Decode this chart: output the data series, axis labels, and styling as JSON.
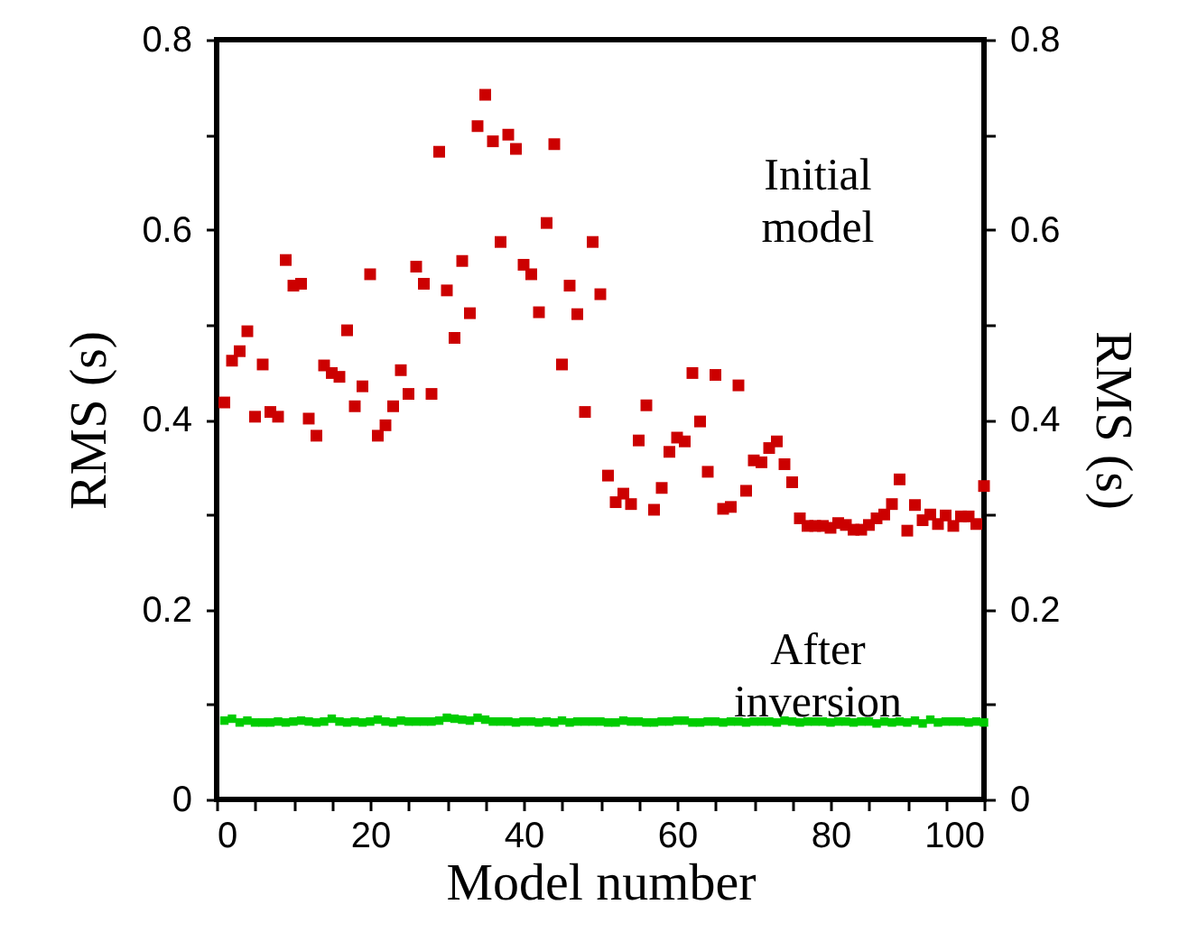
{
  "chart_data": {
    "type": "scatter",
    "xlabel": "Model number",
    "ylabel": "RMS (s)",
    "y2label": "RMS (s)",
    "marker": "square",
    "grid": false,
    "xlim": [
      0,
      100
    ],
    "ylim": [
      0,
      0.8
    ],
    "y2lim": [
      0,
      0.8
    ],
    "xticks": [
      0,
      {
        "value": 5,
        "label": null
      },
      {
        "value": 10,
        "label": null
      },
      {
        "value": 15,
        "label": null
      },
      20,
      {
        "value": 25,
        "label": null
      },
      {
        "value": 30,
        "label": null
      },
      {
        "value": 35,
        "label": null
      },
      40,
      {
        "value": 45,
        "label": null
      },
      {
        "value": 50,
        "label": null
      },
      {
        "value": 55,
        "label": null
      },
      60,
      {
        "value": 65,
        "label": null
      },
      {
        "value": 70,
        "label": null
      },
      {
        "value": 75,
        "label": null
      },
      80,
      {
        "value": 85,
        "label": null
      },
      {
        "value": 90,
        "label": null
      },
      {
        "value": 95,
        "label": null
      },
      100
    ],
    "yticks": [
      0,
      {
        "value": 0.1,
        "label": null
      },
      0.2,
      {
        "value": 0.3,
        "label": null
      },
      0.4,
      {
        "value": 0.5,
        "label": null
      },
      0.6,
      {
        "value": 0.7,
        "label": null
      },
      0.8
    ],
    "y2ticks": [
      0,
      {
        "value": 0.1,
        "label": null
      },
      0.2,
      {
        "value": 0.3,
        "label": null
      },
      0.4,
      {
        "value": 0.5,
        "label": null
      },
      0.6,
      {
        "value": 0.7,
        "label": null
      },
      0.8
    ],
    "x": [
      1,
      2,
      3,
      4,
      5,
      6,
      7,
      8,
      9,
      10,
      11,
      12,
      13,
      14,
      15,
      16,
      17,
      18,
      19,
      20,
      21,
      22,
      23,
      24,
      25,
      26,
      27,
      28,
      29,
      30,
      31,
      32,
      33,
      34,
      35,
      36,
      37,
      38,
      39,
      40,
      41,
      42,
      43,
      44,
      45,
      46,
      47,
      48,
      49,
      50,
      51,
      52,
      53,
      54,
      55,
      56,
      57,
      58,
      59,
      60,
      61,
      62,
      63,
      64,
      65,
      66,
      67,
      68,
      69,
      70,
      71,
      72,
      73,
      74,
      75,
      76,
      77,
      78,
      79,
      80,
      81,
      82,
      83,
      84,
      85,
      86,
      87,
      88,
      89,
      90,
      91,
      92,
      93,
      94,
      95,
      96,
      97,
      98,
      99,
      100
    ],
    "series": [
      {
        "name": "Initial model",
        "color": "#cc0000",
        "values": [
          0.418,
          0.462,
          0.472,
          0.493,
          0.403,
          0.458,
          0.408,
          0.403,
          0.568,
          0.541,
          0.543,
          0.401,
          0.383,
          0.457,
          0.449,
          0.445,
          0.494,
          0.414,
          0.435,
          0.553,
          0.383,
          0.394,
          0.414,
          0.452,
          0.427,
          0.561,
          0.543,
          0.427,
          0.682,
          0.536,
          0.486,
          0.567,
          0.512,
          0.709,
          0.742,
          0.693,
          0.587,
          0.7,
          0.685,
          0.563,
          0.553,
          0.513,
          0.607,
          0.69,
          0.458,
          0.541,
          0.511,
          0.408,
          0.587,
          0.532,
          0.341,
          0.313,
          0.322,
          0.311,
          0.378,
          0.415,
          0.305,
          0.328,
          0.366,
          0.381,
          0.377,
          0.449,
          0.398,
          0.345,
          0.447,
          0.306,
          0.308,
          0.436,
          0.325,
          0.357,
          0.355,
          0.37,
          0.377,
          0.353,
          0.334,
          0.296,
          0.288,
          0.288,
          0.288,
          0.286,
          0.291,
          0.289,
          0.284,
          0.284,
          0.289,
          0.296,
          0.3,
          0.311,
          0.337,
          0.283,
          0.31,
          0.294,
          0.3,
          0.29,
          0.299,
          0.288,
          0.298,
          0.298,
          0.29,
          0.33
        ]
      },
      {
        "name": "After inversion",
        "color": "#00cc00",
        "values": [
          0.083,
          0.085,
          0.081,
          0.083,
          0.081,
          0.081,
          0.081,
          0.082,
          0.081,
          0.082,
          0.083,
          0.082,
          0.081,
          0.082,
          0.085,
          0.082,
          0.081,
          0.082,
          0.081,
          0.082,
          0.084,
          0.082,
          0.081,
          0.083,
          0.082,
          0.082,
          0.082,
          0.082,
          0.083,
          0.086,
          0.085,
          0.084,
          0.083,
          0.086,
          0.084,
          0.082,
          0.082,
          0.082,
          0.081,
          0.082,
          0.082,
          0.081,
          0.082,
          0.081,
          0.083,
          0.081,
          0.082,
          0.082,
          0.082,
          0.082,
          0.081,
          0.081,
          0.083,
          0.082,
          0.082,
          0.081,
          0.081,
          0.082,
          0.082,
          0.083,
          0.083,
          0.081,
          0.081,
          0.082,
          0.082,
          0.081,
          0.082,
          0.082,
          0.081,
          0.082,
          0.082,
          0.082,
          0.081,
          0.083,
          0.082,
          0.081,
          0.082,
          0.082,
          0.082,
          0.081,
          0.082,
          0.082,
          0.081,
          0.082,
          0.082,
          0.08,
          0.082,
          0.081,
          0.082,
          0.081,
          0.083,
          0.08,
          0.084,
          0.081,
          0.082,
          0.082,
          0.082,
          0.081,
          0.082,
          0.081
        ]
      }
    ]
  }
}
